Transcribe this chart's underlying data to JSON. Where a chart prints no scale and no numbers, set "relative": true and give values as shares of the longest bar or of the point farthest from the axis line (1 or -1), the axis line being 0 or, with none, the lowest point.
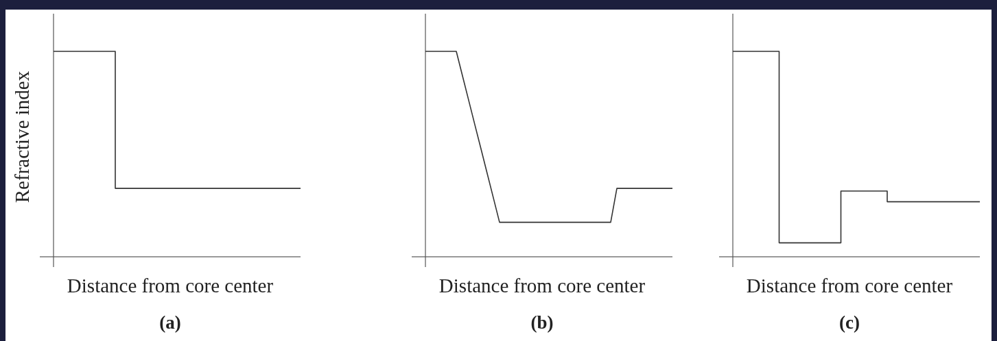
{
  "chart_data": [
    {
      "type": "step",
      "title": "(a)",
      "xlabel": "Distance from core center",
      "ylabel": "Refractive index",
      "relative": true,
      "color": "#333333",
      "categories": [
        null,
        null,
        null,
        null,
        null
      ],
      "values": [
        1,
        0.333,
        0.333,
        0.333,
        0.333
      ]
    },
    {
      "type": "line",
      "title": "(b)",
      "xlabel": "Distance from core center",
      "relative": true,
      "color": "#333333",
      "categories": [
        null,
        null,
        null,
        null,
        null,
        null,
        null,
        null,
        null,
        null,
        null,
        null,
        null,
        null,
        null,
        null,
        null,
        null,
        null,
        null,
        null,
        null,
        null,
        null,
        null,
        null,
        null,
        null,
        null,
        null,
        null,
        null,
        null,
        null,
        null,
        null,
        null,
        null,
        null,
        null,
        null
      ],
      "values": [
        1,
        1,
        1,
        1,
        1,
        1,
        0.881,
        0.762,
        0.643,
        0.525,
        0.406,
        0.287,
        0.168,
        0.168,
        0.168,
        0.168,
        0.168,
        0.168,
        0.168,
        0.168,
        0.168,
        0.168,
        0.168,
        0.168,
        0.168,
        0.168,
        0.168,
        0.168,
        0.168,
        0.168,
        0.168,
        0.333,
        0.333,
        0.333,
        0.333,
        0.333,
        0.333,
        0.333,
        0.333,
        0.333,
        0.333
      ]
    },
    {
      "type": "step",
      "title": "(c)",
      "xlabel": "Distance from core center",
      "relative": true,
      "color": "#333333",
      "categories": [
        null,
        null,
        null,
        null,
        null,
        null,
        null,
        null,
        null,
        null,
        null,
        null,
        null,
        null,
        null,
        null,
        null
      ],
      "values": [
        1,
        1,
        1,
        0.068,
        0.068,
        0.068,
        0.068,
        0.32,
        0.32,
        0.32,
        0.268,
        0.268,
        0.268,
        0.268,
        0.268,
        0.268,
        0.268
      ]
    }
  ]
}
